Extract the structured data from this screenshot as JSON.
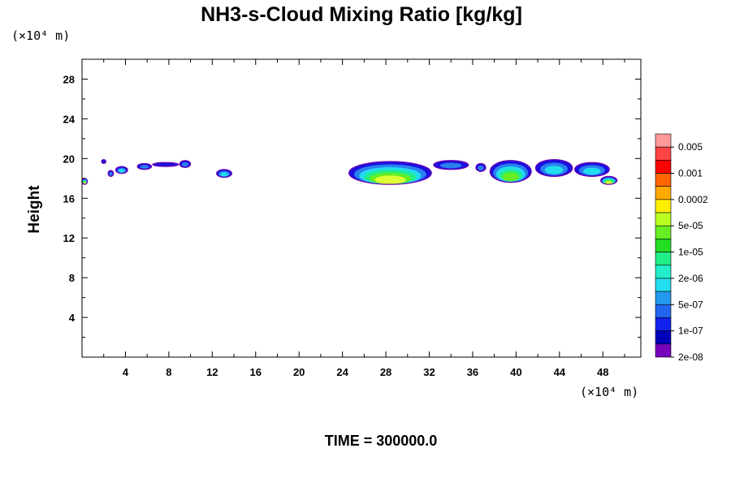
{
  "chart_data": {
    "type": "contour",
    "title": "NH3-s-Cloud Mixing Ratio [kg/kg]",
    "xlabel": "",
    "ylabel": "Height",
    "x_unit_label": "(×10⁴ m)",
    "y_unit_label": "(×10⁴ m)",
    "xlim": [
      0,
      51.5
    ],
    "ylim": [
      0,
      30
    ],
    "xticks": [
      4,
      8,
      12,
      16,
      20,
      24,
      28,
      32,
      36,
      40,
      44,
      48
    ],
    "yticks": [
      4,
      8,
      12,
      16,
      20,
      24,
      28
    ],
    "footer": "TIME = 300000.0",
    "colorbar": {
      "labels": [
        "0.005",
        "0.001",
        "0.0002",
        "5e-05",
        "1e-05",
        "2e-06",
        "5e-07",
        "1e-07",
        "2e-08"
      ],
      "colors_top_to_bottom": [
        "#ff9999",
        "#ff4444",
        "#ff0000",
        "#ff6600",
        "#ffaa00",
        "#ffee00",
        "#bbff22",
        "#66ee22",
        "#22dd22",
        "#22ee88",
        "#22eecc",
        "#22ddee",
        "#2299ee",
        "#2266ee",
        "#1122ee",
        "#0000bb",
        "#7700bb"
      ]
    },
    "cloud_regions": [
      {
        "x_range": [
          0.0,
          0.5
        ],
        "y_range": [
          17.4,
          18.0
        ],
        "max_level": "5e-05"
      },
      {
        "x_range": [
          1.8,
          2.2
        ],
        "y_range": [
          19.5,
          19.9
        ],
        "max_level": "2e-08"
      },
      {
        "x_range": [
          2.4,
          2.9
        ],
        "y_range": [
          18.2,
          18.8
        ],
        "max_level": "1e-07"
      },
      {
        "x_range": [
          3.1,
          4.2
        ],
        "y_range": [
          18.5,
          19.2
        ],
        "max_level": "5e-07"
      },
      {
        "x_range": [
          5.1,
          6.4
        ],
        "y_range": [
          18.9,
          19.5
        ],
        "max_level": "1e-07"
      },
      {
        "x_range": [
          6.5,
          8.9
        ],
        "y_range": [
          19.2,
          19.6
        ],
        "max_level": "2e-08"
      },
      {
        "x_range": [
          9.0,
          10.0
        ],
        "y_range": [
          19.1,
          19.8
        ],
        "max_level": "1e-07"
      },
      {
        "x_range": [
          12.4,
          13.8
        ],
        "y_range": [
          18.1,
          18.9
        ],
        "max_level": "5e-07"
      },
      {
        "x_range": [
          24.6,
          32.2
        ],
        "y_range": [
          17.4,
          19.7
        ],
        "max_level": "5e-05"
      },
      {
        "x_range": [
          32.4,
          35.6
        ],
        "y_range": [
          18.9,
          19.8
        ],
        "max_level": "1e-07"
      },
      {
        "x_range": [
          36.3,
          37.2
        ],
        "y_range": [
          18.7,
          19.5
        ],
        "max_level": "1e-07"
      },
      {
        "x_range": [
          37.6,
          41.4
        ],
        "y_range": [
          17.6,
          19.8
        ],
        "max_level": "1e-05"
      },
      {
        "x_range": [
          41.8,
          45.2
        ],
        "y_range": [
          18.2,
          19.9
        ],
        "max_level": "5e-07"
      },
      {
        "x_range": [
          45.4,
          48.6
        ],
        "y_range": [
          18.2,
          19.6
        ],
        "max_level": "5e-07"
      },
      {
        "x_range": [
          47.8,
          49.3
        ],
        "y_range": [
          17.4,
          18.2
        ],
        "max_level": "5e-05"
      }
    ]
  }
}
